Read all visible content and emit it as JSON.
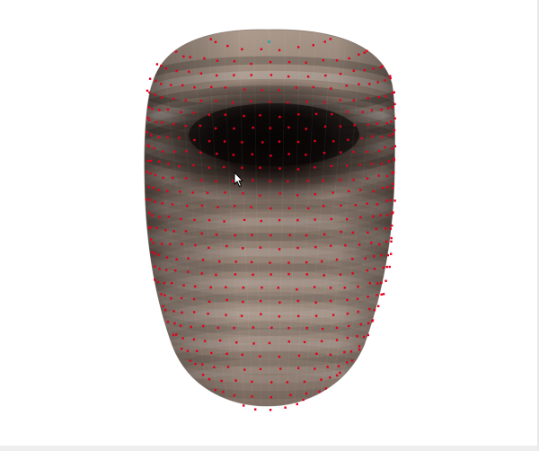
{
  "viewer": {
    "background": "#ffffff",
    "model": {
      "shape": "closed-tube-mesh",
      "face_color_light": "#a8968a",
      "face_color_dark": "#0c0807",
      "vertex_marker_color": "#e3001b",
      "selected_vertex_color": "#3fa0a0"
    },
    "cursor": "arrow-pointer"
  }
}
